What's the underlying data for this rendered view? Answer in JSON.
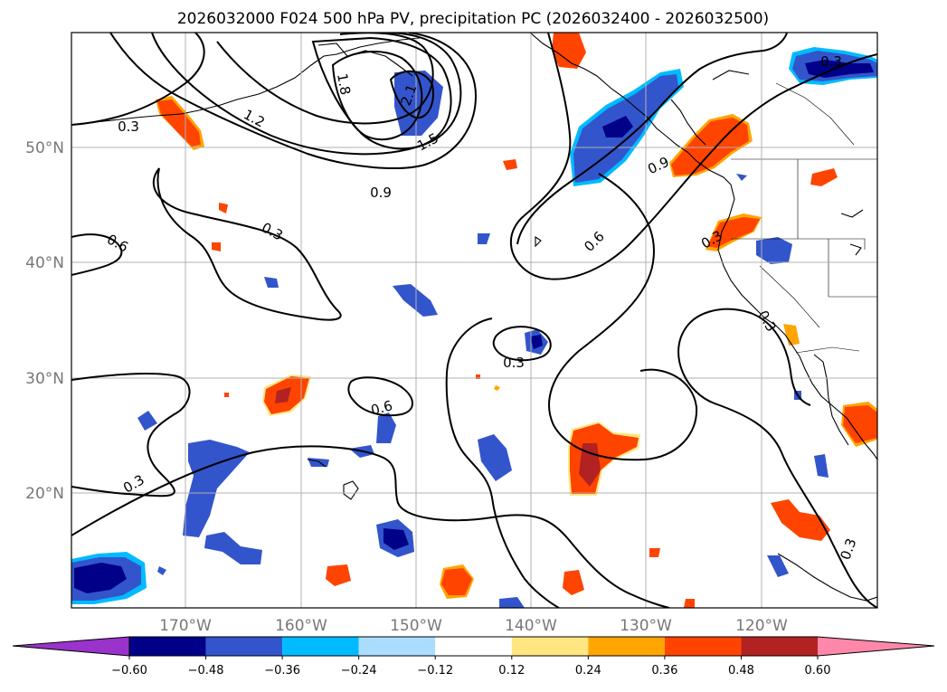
{
  "title": "2026032000 F024 500 hPa PV, precipitation PC (2026032400 - 2026032500)",
  "lat_labels": [
    "50°N",
    "40°N",
    "30°N",
    "20°N"
  ],
  "lon_labels": [
    "170°W",
    "160°W",
    "150°W",
    "140°W",
    "130°W",
    "120°W"
  ],
  "colorbar": {
    "ticks": [
      "−0.60",
      "−0.48",
      "−0.36",
      "−0.24",
      "−0.12",
      "0.12",
      "0.24",
      "0.36",
      "0.48",
      "0.60"
    ],
    "colors": [
      "#9933cc",
      "#000088",
      "#3355cc",
      "#00bbff",
      "#aaddff",
      "#ffffff",
      "#ffe680",
      "#ffa500",
      "#ff4400",
      "#b22222",
      "#ff88aa"
    ]
  },
  "contour_labels": {
    "c1": "0.3",
    "c2": "1.2",
    "c3": "1.8",
    "c4": "2.1",
    "c5": "1.5",
    "c6": "0.9",
    "c7": "0.3",
    "c8": "0.6",
    "c9": "0.6",
    "c10": "0.9",
    "c11": "0.3",
    "c12": "0.3",
    "c13": "0.6",
    "c14": "0.3",
    "c15": "0.3",
    "c16": "0.3",
    "c17": "0.3"
  }
}
